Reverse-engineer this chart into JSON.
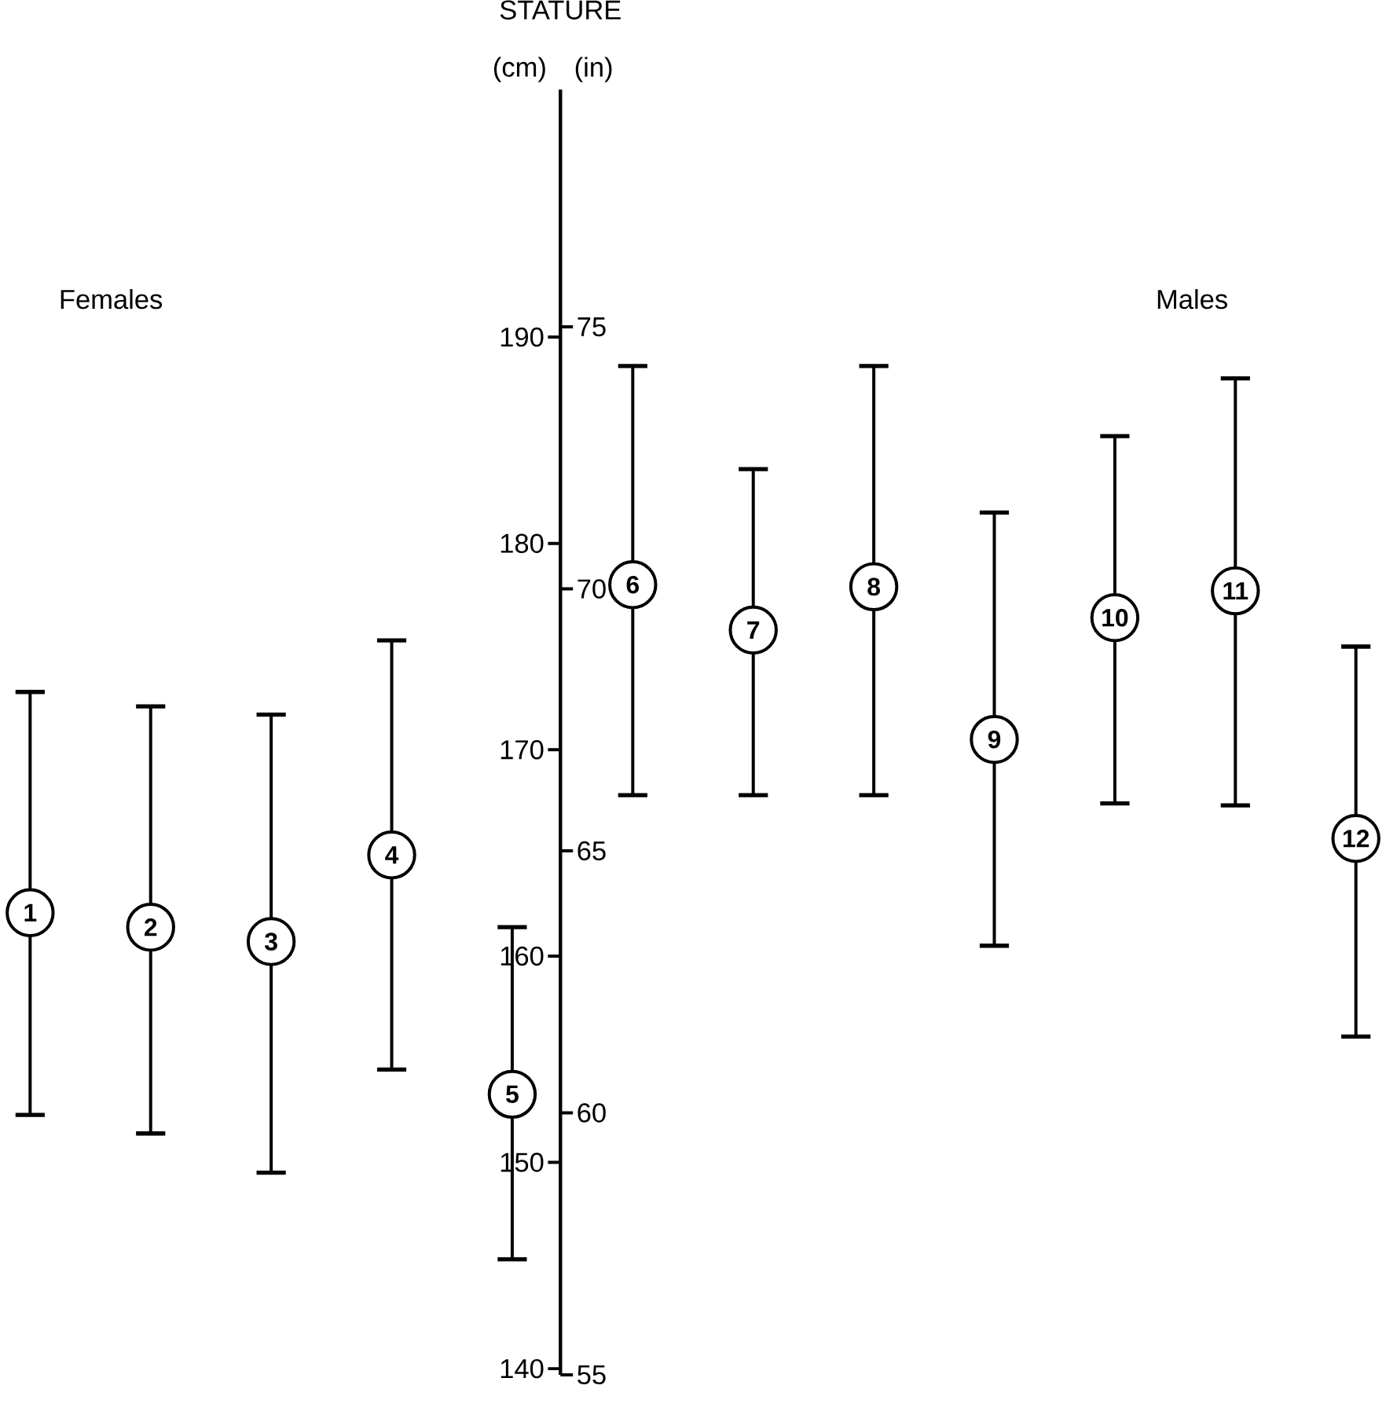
{
  "chart_data": {
    "type": "scatter",
    "title": "STATURE",
    "ylabel": "(cm)",
    "y2label": "(in)",
    "annotations": [
      "Females",
      "Males"
    ],
    "categories": [
      "1",
      "2",
      "3",
      "4",
      "5",
      "6",
      "7",
      "8",
      "9",
      "10",
      "11",
      "12"
    ],
    "values": [
      162.1,
      161.4,
      160.7,
      164.9,
      153.3,
      178.0,
      175.8,
      177.9,
      170.5,
      176.4,
      177.7,
      165.7
    ],
    "errors": [
      [
        152.3,
        172.8
      ],
      [
        151.4,
        172.1
      ],
      [
        149.5,
        171.7
      ],
      [
        154.5,
        175.3
      ],
      [
        145.3,
        161.4
      ],
      [
        167.8,
        188.6
      ],
      [
        167.8,
        183.6
      ],
      [
        167.8,
        188.6
      ],
      [
        160.5,
        181.5
      ],
      [
        167.4,
        185.2
      ],
      [
        167.3,
        188.0
      ],
      [
        156.1,
        175.0
      ]
    ],
    "color": "#000000",
    "marker": "circle",
    "ylim": [
      139.7,
      202
    ],
    "yticks": [
      140,
      150,
      160,
      170,
      180,
      190
    ],
    "y2lim": [
      55,
      79.53
    ],
    "y2ticks": [
      55,
      60,
      65,
      70,
      75
    ]
  }
}
